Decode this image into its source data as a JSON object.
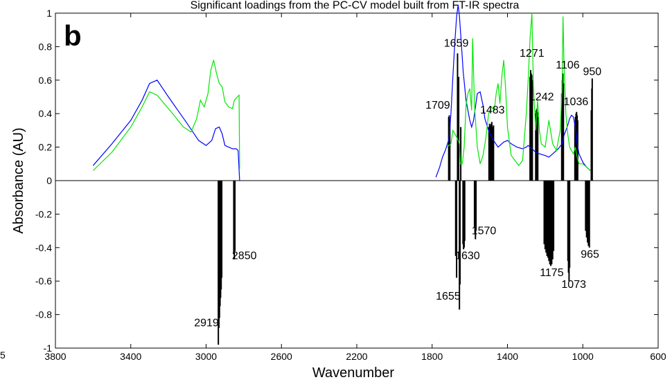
{
  "chart_data": {
    "type": "line",
    "title": "Significant loadings from the PC-CV model built from FT-IR spectra",
    "panel_label": "b",
    "stray_label": "5",
    "xlabel": "Wavenumber",
    "ylabel": "Absorbance (AU)",
    "xlim": [
      3800,
      600
    ],
    "ylim": [
      -1,
      1
    ],
    "x_reversed": true,
    "grid": false,
    "x_ticks": [
      3800,
      3400,
      3000,
      2600,
      2200,
      1800,
      1400,
      1000,
      600
    ],
    "y_ticks": [
      -1,
      -0.8,
      -0.6,
      -0.4,
      -0.2,
      0,
      0.2,
      0.4,
      0.6,
      0.8,
      1
    ],
    "y_tick_labels": [
      "-1",
      "-0.8",
      "-0.6",
      "-0.4",
      "-0.2",
      "0",
      "0.2",
      "0.4",
      "0.6",
      "0.8",
      "1"
    ],
    "colors": {
      "series_blue": "#0000ff",
      "series_green": "#00e600",
      "bars": "#000000"
    },
    "series": [
      {
        "color": "#0000ff",
        "segments": [
          {
            "x": [
              3600,
              3500,
              3400,
              3340,
              3300,
              3260,
              3200,
              3100,
              3040,
              3000,
              2970,
              2950,
              2930,
              2915,
              2900,
              2880,
              2860,
              2840,
              2830,
              2822
            ],
            "y": [
              0.09,
              0.22,
              0.36,
              0.48,
              0.58,
              0.6,
              0.5,
              0.34,
              0.24,
              0.21,
              0.24,
              0.31,
              0.32,
              0.28,
              0.21,
              0.2,
              0.19,
              0.19,
              0.18,
              0.0
            ]
          },
          {
            "x": [
              1780,
              1760,
              1745,
              1730,
              1710,
              1700,
              1690,
              1680,
              1670,
              1662,
              1655,
              1645,
              1635,
              1620,
              1600,
              1590,
              1580,
              1560,
              1545,
              1530,
              1520,
              1500,
              1480,
              1450,
              1420,
              1400,
              1380,
              1350,
              1320,
              1300,
              1290,
              1270,
              1250,
              1230,
              1200,
              1180,
              1160,
              1130,
              1110,
              1100,
              1090,
              1080,
              1070,
              1060,
              1050,
              1040,
              1030,
              1020,
              1000,
              980,
              960
            ],
            "y": [
              0.02,
              0.08,
              0.14,
              0.18,
              0.25,
              0.4,
              0.62,
              0.82,
              0.98,
              1.05,
              0.98,
              0.82,
              0.65,
              0.48,
              0.36,
              0.32,
              0.36,
              0.52,
              0.53,
              0.45,
              0.37,
              0.3,
              0.25,
              0.2,
              0.23,
              0.24,
              0.22,
              0.2,
              0.19,
              0.2,
              0.21,
              0.19,
              0.17,
              0.16,
              0.15,
              0.14,
              0.16,
              0.19,
              0.22,
              0.27,
              0.3,
              0.33,
              0.37,
              0.39,
              0.38,
              0.32,
              0.22,
              0.16,
              0.11,
              0.08,
              0.06
            ]
          }
        ]
      },
      {
        "color": "#00e600",
        "segments": [
          {
            "x": [
              3600,
              3500,
              3400,
              3340,
              3300,
              3260,
              3200,
              3120,
              3080,
              3050,
              3030,
              3010,
              2990,
              2975,
              2960,
              2945,
              2930,
              2915,
              2900,
              2880,
              2860,
              2850,
              2835,
              2825,
              2822
            ],
            "y": [
              0.06,
              0.17,
              0.32,
              0.44,
              0.53,
              0.51,
              0.43,
              0.32,
              0.29,
              0.37,
              0.48,
              0.44,
              0.52,
              0.66,
              0.72,
              0.64,
              0.58,
              0.56,
              0.47,
              0.44,
              0.43,
              0.48,
              0.5,
              0.51,
              0.07
            ]
          },
          {
            "x": [
              1720,
              1700,
              1690,
              1680,
              1670,
              1662,
              1655,
              1650,
              1640,
              1630,
              1620,
              1610,
              1600,
              1590,
              1585,
              1575,
              1560,
              1545,
              1530,
              1515,
              1500,
              1485,
              1470,
              1460,
              1450,
              1440,
              1430,
              1420,
              1410,
              1400,
              1380,
              1360,
              1340,
              1320,
              1300,
              1290,
              1280,
              1270,
              1262,
              1250,
              1240,
              1230,
              1220,
              1200,
              1180,
              1160,
              1140,
              1120,
              1110,
              1105,
              1100,
              1090,
              1080,
              1070,
              1060,
              1050,
              1040,
              1030,
              1020,
              1000,
              980,
              960
            ],
            "y": [
              0.2,
              0.22,
              0.3,
              0.28,
              0.26,
              0.24,
              0.22,
              0.1,
              0.1,
              0.2,
              0.45,
              0.52,
              0.55,
              0.42,
              0.85,
              0.45,
              0.2,
              0.1,
              0.15,
              0.25,
              0.4,
              0.44,
              0.42,
              0.52,
              0.58,
              0.46,
              0.62,
              0.72,
              0.55,
              0.32,
              0.15,
              0.12,
              0.09,
              0.12,
              0.4,
              0.6,
              0.85,
              1.0,
              0.55,
              0.3,
              0.48,
              0.3,
              0.22,
              0.2,
              0.36,
              0.22,
              0.18,
              0.3,
              0.55,
              0.98,
              0.7,
              0.4,
              0.28,
              0.2,
              0.18,
              0.16,
              0.2,
              0.14,
              0.1,
              0.1,
              0.08,
              0.06
            ]
          }
        ]
      }
    ],
    "bars": [
      [
        2935,
        -0.98
      ],
      [
        2932,
        -0.88
      ],
      [
        2929,
        -0.82
      ],
      [
        2926,
        -0.75
      ],
      [
        2923,
        -0.7
      ],
      [
        2920,
        -0.65
      ],
      [
        2917,
        -0.58
      ],
      [
        2853,
        -0.44
      ],
      [
        2850,
        -0.47
      ],
      [
        2847,
        -0.42
      ],
      [
        1712,
        0.38
      ],
      [
        1709,
        0.39
      ],
      [
        1706,
        0.35
      ],
      [
        1675,
        -0.45
      ],
      [
        1670,
        -0.58
      ],
      [
        1665,
        0.76
      ],
      [
        1662,
        0.6
      ],
      [
        1659,
        0.62
      ],
      [
        1655,
        -0.77
      ],
      [
        1652,
        -0.62
      ],
      [
        1648,
        0.32
      ],
      [
        1636,
        -0.38
      ],
      [
        1633,
        -0.41
      ],
      [
        1630,
        -0.4
      ],
      [
        1627,
        -0.36
      ],
      [
        1575,
        -0.28
      ],
      [
        1572,
        -0.32
      ],
      [
        1570,
        -0.35
      ],
      [
        1567,
        -0.3
      ],
      [
        1498,
        0.32
      ],
      [
        1495,
        0.34
      ],
      [
        1492,
        0.33
      ],
      [
        1489,
        0.31
      ],
      [
        1486,
        0.34
      ],
      [
        1483,
        0.35
      ],
      [
        1480,
        0.32
      ],
      [
        1477,
        0.3
      ],
      [
        1474,
        0.33
      ],
      [
        1280,
        0.62
      ],
      [
        1277,
        0.66
      ],
      [
        1274,
        0.64
      ],
      [
        1271,
        0.63
      ],
      [
        1268,
        0.6
      ],
      [
        1250,
        0.4
      ],
      [
        1247,
        0.42
      ],
      [
        1244,
        0.43
      ],
      [
        1242,
        0.41
      ],
      [
        1239,
        0.38
      ],
      [
        1205,
        -0.38
      ],
      [
        1200,
        -0.41
      ],
      [
        1195,
        -0.43
      ],
      [
        1190,
        -0.45
      ],
      [
        1185,
        -0.46
      ],
      [
        1180,
        -0.48
      ],
      [
        1175,
        -0.5
      ],
      [
        1170,
        -0.51
      ],
      [
        1165,
        -0.5
      ],
      [
        1160,
        -0.47
      ],
      [
        1155,
        -0.42
      ],
      [
        1112,
        0.52
      ],
      [
        1109,
        0.6
      ],
      [
        1106,
        0.64
      ],
      [
        1103,
        0.58
      ],
      [
        1079,
        -0.48
      ],
      [
        1076,
        -0.55
      ],
      [
        1073,
        -0.6
      ],
      [
        1070,
        -0.52
      ],
      [
        1042,
        0.35
      ],
      [
        1039,
        0.38
      ],
      [
        1036,
        0.4
      ],
      [
        1033,
        0.41
      ],
      [
        1030,
        0.39
      ],
      [
        1027,
        0.36
      ],
      [
        985,
        -0.3
      ],
      [
        980,
        -0.34
      ],
      [
        975,
        -0.37
      ],
      [
        970,
        -0.39
      ],
      [
        965,
        -0.4
      ],
      [
        955,
        0.42
      ],
      [
        952,
        0.55
      ],
      [
        950,
        0.61
      ]
    ],
    "annotations": [
      {
        "text": "1709",
        "x": 1770,
        "y": 0.43
      },
      {
        "text": "1659",
        "x": 1672,
        "y": 0.8
      },
      {
        "text": "1483",
        "x": 1480,
        "y": 0.4
      },
      {
        "text": "1271",
        "x": 1270,
        "y": 0.74
      },
      {
        "text": "1242",
        "x": 1219,
        "y": 0.48
      },
      {
        "text": "1106",
        "x": 1080,
        "y": 0.67
      },
      {
        "text": "1036",
        "x": 1036,
        "y": 0.45
      },
      {
        "text": "950",
        "x": 950,
        "y": 0.63
      },
      {
        "text": "2850",
        "x": 2797,
        "y": -0.47
      },
      {
        "text": "2919",
        "x": 2998,
        "y": -0.87
      },
      {
        "text": "1570",
        "x": 1525,
        "y": -0.32
      },
      {
        "text": "1630",
        "x": 1612,
        "y": -0.47
      },
      {
        "text": "1655",
        "x": 1715,
        "y": -0.71
      },
      {
        "text": "1175",
        "x": 1165,
        "y": -0.57
      },
      {
        "text": "1073",
        "x": 1048,
        "y": -0.64
      },
      {
        "text": "965",
        "x": 962,
        "y": -0.46
      }
    ]
  }
}
